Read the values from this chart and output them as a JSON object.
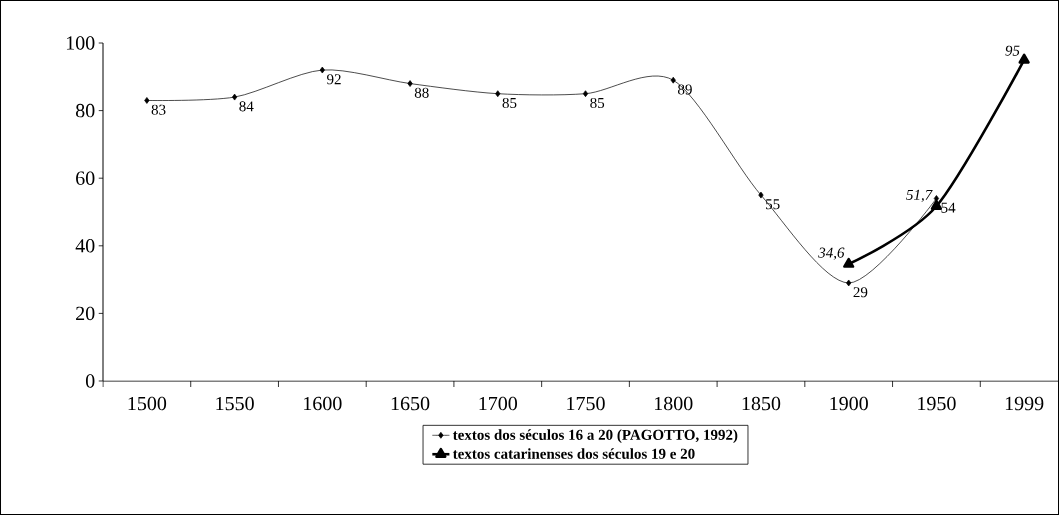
{
  "chart_data": {
    "type": "line",
    "categories": [
      "1500",
      "1550",
      "1600",
      "1650",
      "1700",
      "1750",
      "1800",
      "1850",
      "1900",
      "1950",
      "1999"
    ],
    "series": [
      {
        "name": "textos dos séculos 16 a 20 (PAGOTTO, 1992)",
        "color": "#000000",
        "marker": "diamond",
        "values": [
          83,
          84,
          92,
          88,
          85,
          85,
          89,
          55,
          29,
          54,
          null
        ],
        "value_labels": [
          "83",
          "84",
          "92",
          "88",
          "85",
          "85",
          "89",
          "55",
          "29",
          "54",
          null
        ]
      },
      {
        "name": "textos catarinenses dos séculos 19 e 20",
        "color": "#000000",
        "marker": "triangle",
        "values": [
          null,
          null,
          null,
          null,
          null,
          null,
          null,
          null,
          34.6,
          51.7,
          95
        ],
        "value_labels": [
          null,
          null,
          null,
          null,
          null,
          null,
          null,
          null,
          "34,6",
          "51,7",
          "95"
        ]
      }
    ],
    "ylim": [
      0,
      100
    ],
    "yticks": [
      0,
      20,
      40,
      60,
      80,
      100
    ],
    "grid": false,
    "legend": "bottom"
  }
}
